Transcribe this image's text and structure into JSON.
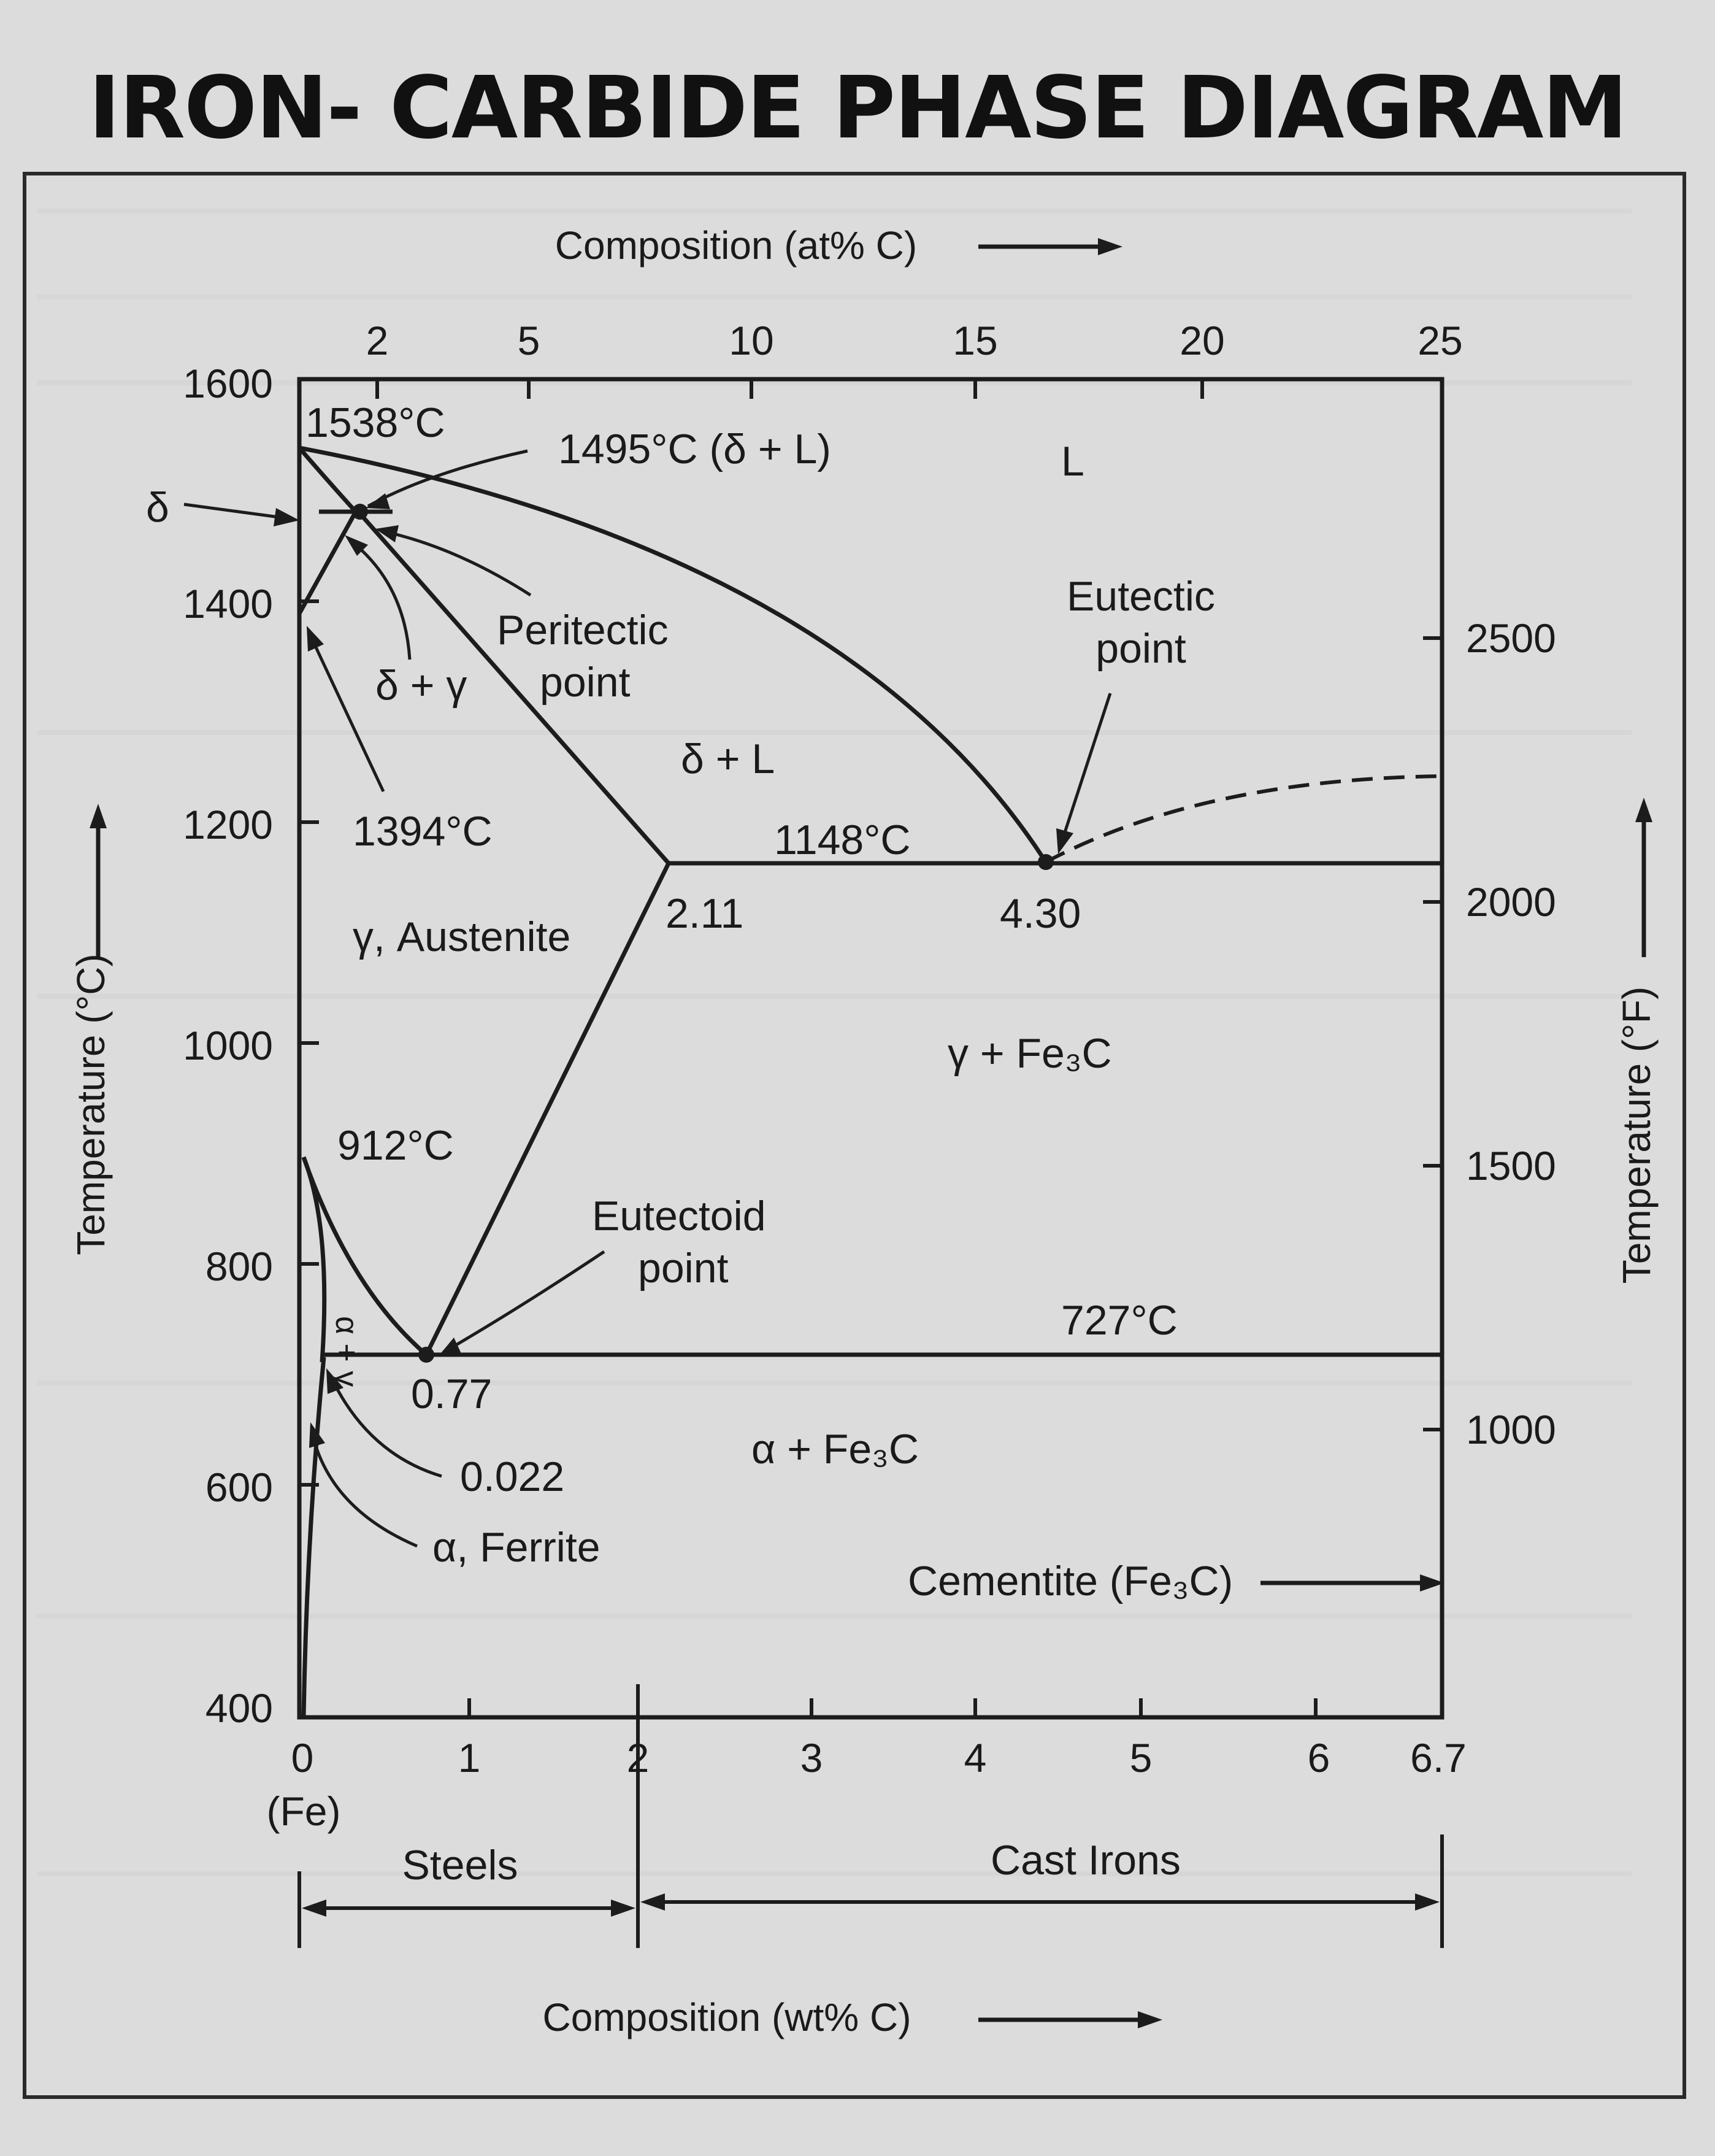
{
  "title": "IRON- CARBIDE PHASE DIAGRAM",
  "axes": {
    "top_label": "Composition (at% C)",
    "bottom_label": "Composition (wt% C)",
    "left_label": "Temperature (°C)",
    "right_label": "Temperature (°F)",
    "top_ticks": [
      "2",
      "5",
      "10",
      "15",
      "20",
      "25"
    ],
    "bottom_ticks": [
      "0",
      "1",
      "2",
      "3",
      "4",
      "5",
      "6",
      "6.7"
    ],
    "bottom_sub": "(Fe)",
    "left_ticks": [
      "1600",
      "1400",
      "1200",
      "1000",
      "800",
      "600",
      "400"
    ],
    "right_ticks": [
      "2500",
      "2000",
      "1500",
      "1000"
    ]
  },
  "labels": {
    "t1538": "1538°C",
    "t1495": "1495°C (δ + L)",
    "delta": "δ",
    "liquid": "L",
    "peritectic_1": "Peritectic",
    "peritectic_2": "point",
    "delta_gamma": "δ + γ",
    "delta_liquid": "δ + L",
    "eutectic_1": "Eutectic",
    "eutectic_2": "point",
    "t1394": "1394°C",
    "t1148": "1148°C",
    "c211": "2.11",
    "c430": "4.30",
    "austenite": "γ, Austenite",
    "gamma_fe3c": "γ + Fe₃C",
    "t912": "912°C",
    "eutectoid_1": "Eutectoid",
    "eutectoid_2": "point",
    "t727": "727°C",
    "c077": "0.77",
    "alpha_fe3c": "α + Fe₃C",
    "c0022": "0.022",
    "ferrite": "α, Ferrite",
    "alpha_gamma": "α + γ",
    "cementite": "Cementite (Fe₃C)",
    "steels": "Steels",
    "cast_irons": "Cast Irons"
  },
  "colors": {
    "background": "#dcdcdc",
    "ink": "#1c1c1c",
    "bleed_text": "#cfcfcf"
  }
}
